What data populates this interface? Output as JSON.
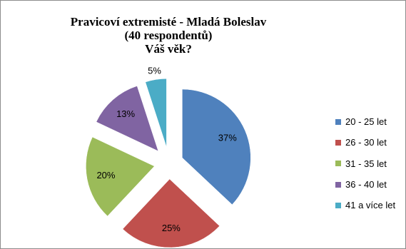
{
  "chart_data": {
    "type": "pie",
    "title_lines": [
      "Pravicoví extremisté - Mladá Boleslav",
      "(40 respondentů)",
      "Váš věk?"
    ],
    "legend_position": "right",
    "exploded": true,
    "slices": [
      {
        "label": "20 - 25 let",
        "value": 37,
        "display": "37%",
        "color": "#4F81BD"
      },
      {
        "label": "26 - 30 let",
        "value": 25,
        "display": "25%",
        "color": "#C0504D"
      },
      {
        "label": "31 - 35 let",
        "value": 20,
        "display": "20%",
        "color": "#9BBB59"
      },
      {
        "label": "36 - 40 let",
        "value": 13,
        "display": "13%",
        "color": "#8064A2"
      },
      {
        "label": "41 a více let",
        "value": 5,
        "display": "5%",
        "color": "#4BACC6"
      }
    ]
  }
}
